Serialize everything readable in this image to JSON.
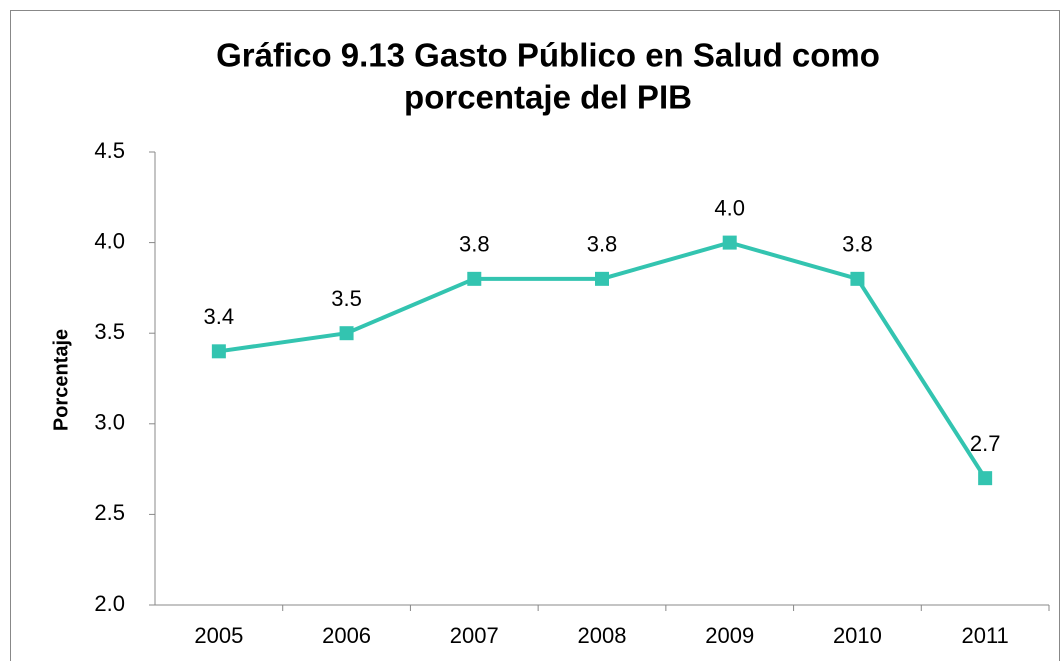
{
  "chart_data": {
    "type": "line",
    "title": [
      "Gráfico 9.13  Gasto Público en Salud  como",
      "porcentaje del PIB"
    ],
    "y_label": "Porcentaje",
    "categories": [
      "2005",
      "2006",
      "2007",
      "2008",
      "2009",
      "2010",
      "2011"
    ],
    "series": [
      {
        "name": "Gasto Público en Salud",
        "color": "#33c4b0",
        "values": [
          3.4,
          3.5,
          3.8,
          3.8,
          4.0,
          3.8,
          2.7
        ],
        "value_labels": [
          "3.4",
          "3.5",
          "3.8",
          "3.8",
          "4.0",
          "3.8",
          "2.7"
        ]
      }
    ],
    "ylim": [
      2.0,
      4.5
    ],
    "yticks": [
      {
        "value": 2.0,
        "label": "2.0"
      },
      2.5,
      {
        "value": 3.0,
        "label": "3.0"
      },
      3.5,
      {
        "value": 4.0,
        "label": "4.0"
      },
      4.5
    ],
    "grid": false
  }
}
